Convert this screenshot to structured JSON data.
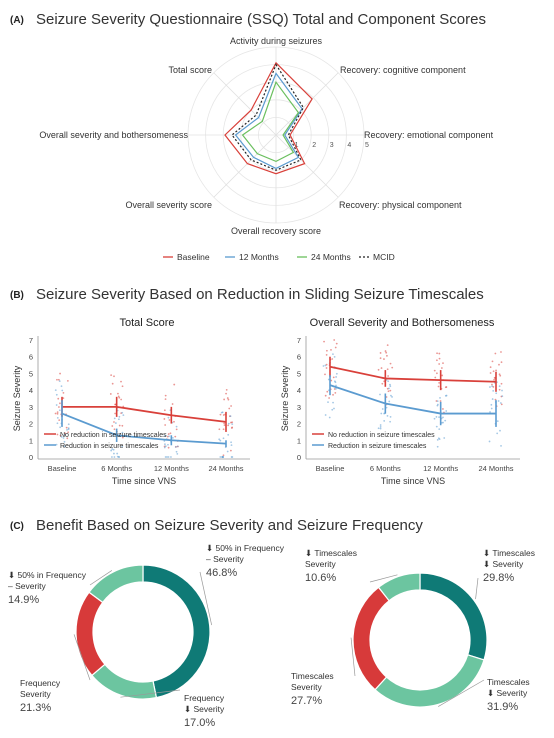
{
  "panel_a": {
    "letter": "(A)",
    "title": "Seizure Severity Questionnaire (SSQ) Total and Component Scores"
  },
  "panel_b": {
    "letter": "(B)",
    "title": "Seizure Severity Based on Reduction in Sliding Seizure Timescales"
  },
  "panel_c": {
    "letter": "(C)",
    "title": "Benefit Based on Seizure Severity and Seizure Frequency"
  },
  "colors": {
    "red": "#d9403a",
    "blue": "#5b9bd0",
    "green": "#6abf5e",
    "dark_teal": "#0f7a76",
    "light_teal": "#6cc5a0",
    "donut_red": "#d73a3a"
  },
  "chart_data": [
    {
      "type": "radar",
      "axes": [
        "Activity during seizures",
        "Recovery: cognitive component",
        "Recovery: emotional component",
        "Recovery: physical component",
        "Overall recovery score",
        "Overall severity score",
        "Overall severity and bothersomeness",
        "Total score"
      ],
      "radial_ticks": [
        "1",
        "2",
        "3",
        "4",
        "5"
      ],
      "rmax": 5,
      "legend": [
        "Baseline",
        "12 Months",
        "24 Months",
        "MCID"
      ],
      "series": [
        {
          "name": "Baseline",
          "values": [
            4.1,
            2.9,
            0.8,
            2.3,
            2.2,
            2.3,
            2.9,
            2.0
          ]
        },
        {
          "name": "12 Months",
          "values": [
            3.5,
            2.1,
            0.5,
            1.8,
            1.9,
            1.8,
            2.3,
            1.4
          ]
        },
        {
          "name": "24 Months",
          "values": [
            3.0,
            1.8,
            0.4,
            1.4,
            1.5,
            1.5,
            1.9,
            1.1
          ]
        },
        {
          "name": "MCID",
          "values": [
            4.0,
            2.2,
            0.7,
            2.0,
            2.0,
            2.0,
            2.5,
            1.6
          ]
        }
      ]
    },
    {
      "type": "line",
      "title": "Total Score",
      "xlabel": "Time since VNS",
      "ylabel": "Seizure Severity",
      "categories": [
        "Baseline",
        "6 Months",
        "12 Months",
        "24 Months"
      ],
      "ylim": [
        0,
        7
      ],
      "yticks": [
        "0",
        "1",
        "2",
        "3",
        "4",
        "5",
        "6",
        "7"
      ],
      "legend": [
        "No reduction in seizure timescales",
        "Reduction in seizure timescales"
      ],
      "series": [
        {
          "name": "No reduction in seizure timescales",
          "values": [
            3.0,
            3.0,
            2.5,
            2.1
          ],
          "err": [
            0.6,
            0.6,
            0.5,
            0.6
          ]
        },
        {
          "name": "Reduction in seizure timescales",
          "values": [
            2.6,
            1.3,
            1.0,
            0.8
          ],
          "err": [
            0.8,
            0.4,
            0.3,
            0.2
          ]
        }
      ]
    },
    {
      "type": "line",
      "title": "Overall Severity and Bothersomeness",
      "xlabel": "Time since VNS",
      "ylabel": "Seizure Severity",
      "categories": [
        "Baseline",
        "6 Months",
        "12 Months",
        "24 Months"
      ],
      "ylim": [
        0,
        7
      ],
      "yticks": [
        "0",
        "1",
        "2",
        "3",
        "4",
        "5",
        "6",
        "7"
      ],
      "legend": [
        "No reduction in seizure timescales",
        "Reduction in seizure timescales"
      ],
      "series": [
        {
          "name": "No reduction in seizure timescales",
          "values": [
            5.4,
            4.7,
            4.6,
            4.5
          ],
          "err": [
            0.6,
            0.5,
            0.6,
            0.6
          ]
        },
        {
          "name": "Reduction in seizure timescales",
          "values": [
            4.3,
            3.2,
            2.6,
            2.6
          ],
          "err": [
            0.6,
            0.6,
            0.7,
            0.8
          ]
        }
      ]
    },
    {
      "type": "pie",
      "slices": [
        {
          "pre": [
            "⬇ 50% in Frequency",
            "– Severity"
          ],
          "value": 46.8,
          "label": "46.8%",
          "color": "#0f7a76"
        },
        {
          "pre": [
            "Frequency",
            "⬇ Severity"
          ],
          "value": 17.0,
          "label": "17.0%",
          "color": "#6cc5a0"
        },
        {
          "pre": [
            "Frequency",
            "Severity"
          ],
          "value": 21.3,
          "label": "21.3%",
          "color": "#d73a3a"
        },
        {
          "pre": [
            "⬇ 50% in Frequency",
            "– Severity"
          ],
          "value": 14.9,
          "label": "14.9%",
          "color": "#6cc5a0"
        }
      ]
    },
    {
      "type": "pie",
      "slices": [
        {
          "pre": [
            "⬇ Timescales",
            "⬇ Severity"
          ],
          "value": 29.8,
          "label": "29.8%",
          "color": "#0f7a76"
        },
        {
          "pre": [
            "Timescales",
            "⬇ Severity"
          ],
          "value": 31.9,
          "label": "31.9%",
          "color": "#6cc5a0"
        },
        {
          "pre": [
            "Timescales",
            "Severity"
          ],
          "value": 27.7,
          "label": "27.7%",
          "color": "#d73a3a"
        },
        {
          "pre": [
            "⬇ Timescales",
            "Severity"
          ],
          "value": 10.6,
          "label": "10.6%",
          "color": "#6cc5a0"
        }
      ]
    }
  ]
}
